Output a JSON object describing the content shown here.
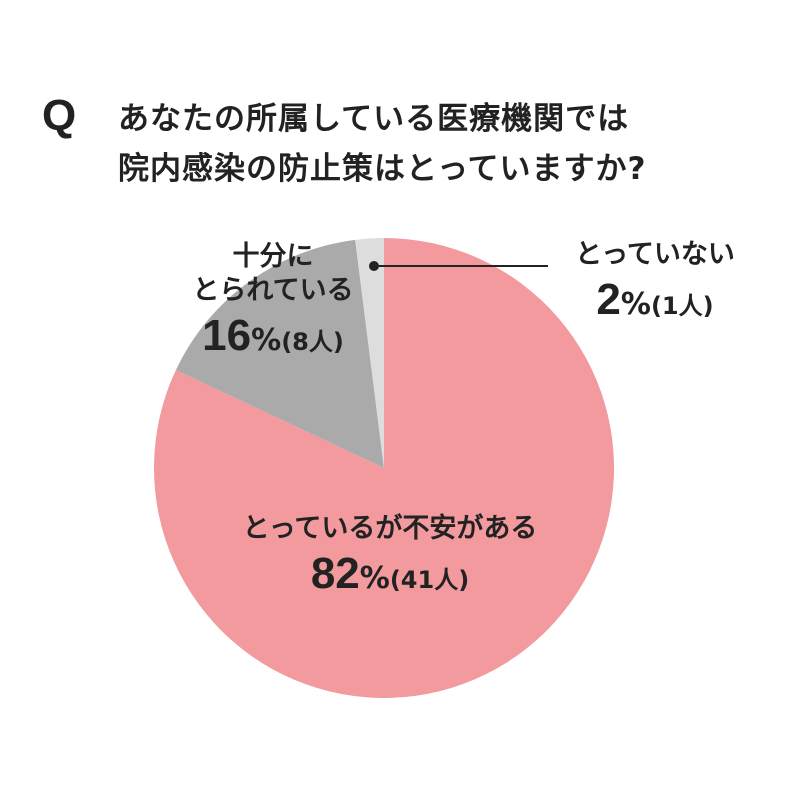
{
  "question": {
    "mark": "Q",
    "line1": "あなたの所属している医療機関では",
    "line2": "院内感染の防止策はとっていますか?"
  },
  "colors": {
    "worried": "#f29a9e",
    "sufficient": "#aaaaaa",
    "not_taken": "#dddddd",
    "text": "#222222"
  },
  "chart_data": {
    "type": "pie",
    "title": "あなたの所属している医療機関では院内感染の防止策はとっていますか?",
    "slices": [
      {
        "key": "worried",
        "name_line1": "とっているが不安がある",
        "name_line2": "",
        "percent": 82,
        "count_label": "(41人)",
        "color": "#f29a9e"
      },
      {
        "key": "sufficient",
        "name_line1": "十分に",
        "name_line2": "とられている",
        "percent": 16,
        "count_label": "(8人)",
        "color": "#aaaaaa"
      },
      {
        "key": "not_taken",
        "name_line1": "とっていない",
        "name_line2": "",
        "percent": 2,
        "count_label": "(1人)",
        "color": "#dddddd"
      }
    ],
    "percent_unit": "%",
    "start": "top",
    "direction": "clockwise"
  }
}
